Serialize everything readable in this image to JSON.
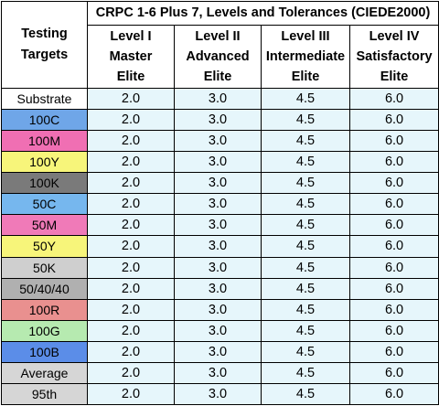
{
  "table": {
    "corner_header": [
      "Testing",
      "Targets"
    ],
    "super_header": "CRPC 1-6 Plus 7, Levels and Tolerances (CIEDE2000)",
    "levels": [
      {
        "lines": [
          "Level I",
          "Master",
          "Elite"
        ]
      },
      {
        "lines": [
          "Level II",
          "Advanced",
          "Elite"
        ]
      },
      {
        "lines": [
          "Level III",
          "Intermediate",
          "Elite"
        ]
      },
      {
        "lines": [
          "Level IV",
          "Satisfactory",
          "Elite"
        ]
      }
    ],
    "rows": [
      {
        "target": "Substrate",
        "color": "#ffffff",
        "values": [
          "2.0",
          "3.0",
          "4.5",
          "6.0"
        ]
      },
      {
        "target": "100C",
        "color": "#6fa6e8",
        "values": [
          "2.0",
          "3.0",
          "4.5",
          "6.0"
        ]
      },
      {
        "target": "100M",
        "color": "#f06fb3",
        "values": [
          "2.0",
          "3.0",
          "4.5",
          "6.0"
        ]
      },
      {
        "target": "100Y",
        "color": "#f7f57a",
        "values": [
          "2.0",
          "3.0",
          "4.5",
          "6.0"
        ]
      },
      {
        "target": "100K",
        "color": "#7a7a7a",
        "values": [
          "2.0",
          "3.0",
          "4.5",
          "6.0"
        ]
      },
      {
        "target": "50C",
        "color": "#76b7ee",
        "values": [
          "2.0",
          "3.0",
          "4.5",
          "6.0"
        ]
      },
      {
        "target": "50M",
        "color": "#f07ab8",
        "values": [
          "2.0",
          "3.0",
          "4.5",
          "6.0"
        ]
      },
      {
        "target": "50Y",
        "color": "#f7f57a",
        "values": [
          "2.0",
          "3.0",
          "4.5",
          "6.0"
        ]
      },
      {
        "target": "50K",
        "color": "#cfcfcf",
        "values": [
          "2.0",
          "3.0",
          "4.5",
          "6.0"
        ]
      },
      {
        "target": "50/40/40",
        "color": "#b0b0b0",
        "values": [
          "2.0",
          "3.0",
          "4.5",
          "6.0"
        ]
      },
      {
        "target": "100R",
        "color": "#e9908f",
        "values": [
          "2.0",
          "3.0",
          "4.5",
          "6.0"
        ]
      },
      {
        "target": "100G",
        "color": "#b6eab0",
        "values": [
          "2.0",
          "3.0",
          "4.5",
          "6.0"
        ]
      },
      {
        "target": "100B",
        "color": "#5b8de8",
        "values": [
          "2.0",
          "3.0",
          "4.5",
          "6.0"
        ]
      },
      {
        "target": "Average",
        "color": "#d6d6d6",
        "values": [
          "2.0",
          "3.0",
          "4.5",
          "6.0"
        ]
      },
      {
        "target": "95th",
        "color": "#d6d6d6",
        "values": [
          "2.0",
          "3.0",
          "4.5",
          "6.0"
        ]
      }
    ]
  }
}
